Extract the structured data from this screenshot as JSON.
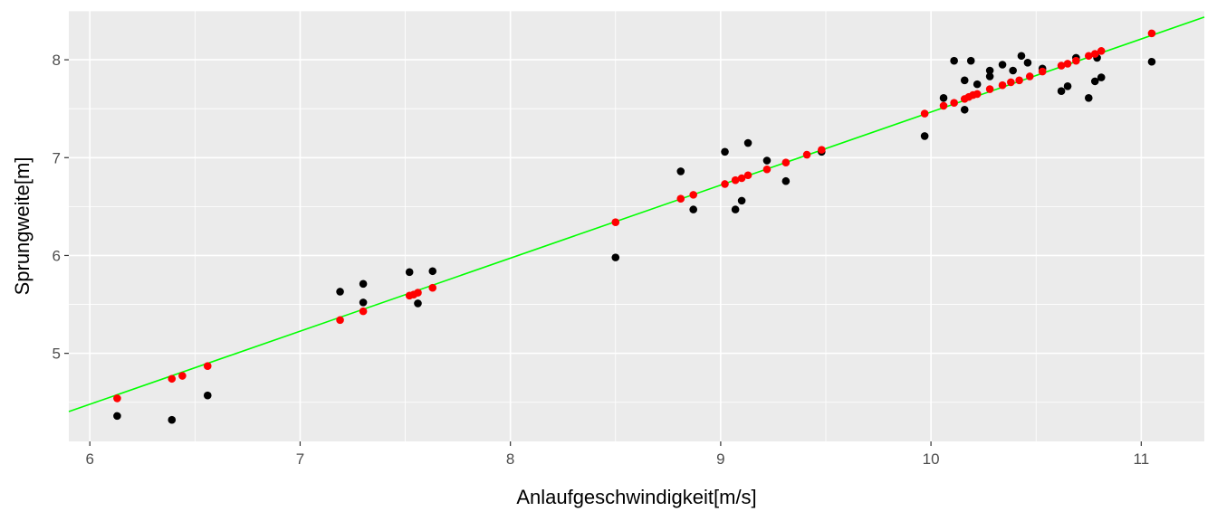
{
  "chart_data": {
    "type": "scatter",
    "xlabel": "Anlaufgeschwindigkeit[m/s]",
    "ylabel": "Sprungweite[m]",
    "xlim": [
      5.9,
      11.3
    ],
    "ylim": [
      4.1,
      8.5
    ],
    "x_ticks": [
      6,
      7,
      8,
      9,
      10,
      11
    ],
    "y_ticks": [
      5,
      6,
      7,
      8
    ],
    "x_tick_labels": [
      "6",
      "7",
      "8",
      "9",
      "10",
      "11"
    ],
    "y_tick_labels": [
      "5",
      "6",
      "7",
      "8"
    ],
    "grid": true,
    "colors": {
      "panel": "#ebebeb",
      "grid_major": "#ffffff",
      "observed": "#000000",
      "fitted": "#ff0000",
      "fit_line": "#00ff00"
    },
    "fit_line": {
      "intercept": 0.0,
      "slope": 0.7466
    },
    "series": [
      {
        "role": "observed",
        "points": [
          {
            "x": 6.13,
            "y": 4.36
          },
          {
            "x": 6.39,
            "y": 4.32
          },
          {
            "x": 6.56,
            "y": 4.57
          },
          {
            "x": 7.19,
            "y": 5.63
          },
          {
            "x": 7.3,
            "y": 5.71
          },
          {
            "x": 7.3,
            "y": 5.52
          },
          {
            "x": 7.52,
            "y": 5.83
          },
          {
            "x": 7.56,
            "y": 5.51
          },
          {
            "x": 7.63,
            "y": 5.84
          },
          {
            "x": 8.5,
            "y": 5.98
          },
          {
            "x": 8.81,
            "y": 6.86
          },
          {
            "x": 8.87,
            "y": 6.47
          },
          {
            "x": 9.02,
            "y": 7.06
          },
          {
            "x": 9.07,
            "y": 6.47
          },
          {
            "x": 9.1,
            "y": 6.56
          },
          {
            "x": 9.13,
            "y": 7.15
          },
          {
            "x": 9.22,
            "y": 6.97
          },
          {
            "x": 9.31,
            "y": 6.76
          },
          {
            "x": 9.48,
            "y": 7.06
          },
          {
            "x": 9.97,
            "y": 7.22
          },
          {
            "x": 10.06,
            "y": 7.61
          },
          {
            "x": 10.11,
            "y": 7.99
          },
          {
            "x": 10.16,
            "y": 7.49
          },
          {
            "x": 10.16,
            "y": 7.79
          },
          {
            "x": 10.19,
            "y": 7.99
          },
          {
            "x": 10.22,
            "y": 7.75
          },
          {
            "x": 10.28,
            "y": 7.89
          },
          {
            "x": 10.28,
            "y": 7.83
          },
          {
            "x": 10.34,
            "y": 7.95
          },
          {
            "x": 10.39,
            "y": 7.89
          },
          {
            "x": 10.43,
            "y": 8.04
          },
          {
            "x": 10.46,
            "y": 7.97
          },
          {
            "x": 10.53,
            "y": 7.91
          },
          {
            "x": 10.62,
            "y": 7.68
          },
          {
            "x": 10.65,
            "y": 7.73
          },
          {
            "x": 10.69,
            "y": 8.02
          },
          {
            "x": 10.75,
            "y": 7.61
          },
          {
            "x": 10.78,
            "y": 7.78
          },
          {
            "x": 10.79,
            "y": 8.02
          },
          {
            "x": 10.81,
            "y": 7.82
          },
          {
            "x": 11.05,
            "y": 7.98
          }
        ]
      },
      {
        "role": "fitted",
        "points": [
          {
            "x": 6.13,
            "y": 4.54
          },
          {
            "x": 6.39,
            "y": 4.74
          },
          {
            "x": 6.44,
            "y": 4.77
          },
          {
            "x": 6.56,
            "y": 4.87
          },
          {
            "x": 7.19,
            "y": 5.34
          },
          {
            "x": 7.3,
            "y": 5.43
          },
          {
            "x": 7.52,
            "y": 5.59
          },
          {
            "x": 7.54,
            "y": 5.6
          },
          {
            "x": 7.56,
            "y": 5.62
          },
          {
            "x": 7.63,
            "y": 5.67
          },
          {
            "x": 8.5,
            "y": 6.34
          },
          {
            "x": 8.81,
            "y": 6.58
          },
          {
            "x": 8.87,
            "y": 6.62
          },
          {
            "x": 9.02,
            "y": 6.73
          },
          {
            "x": 9.07,
            "y": 6.77
          },
          {
            "x": 9.1,
            "y": 6.79
          },
          {
            "x": 9.13,
            "y": 6.82
          },
          {
            "x": 9.22,
            "y": 6.88
          },
          {
            "x": 9.31,
            "y": 6.95
          },
          {
            "x": 9.41,
            "y": 7.03
          },
          {
            "x": 9.48,
            "y": 7.08
          },
          {
            "x": 9.97,
            "y": 7.45
          },
          {
            "x": 10.06,
            "y": 7.53
          },
          {
            "x": 10.11,
            "y": 7.56
          },
          {
            "x": 10.16,
            "y": 7.6
          },
          {
            "x": 10.18,
            "y": 7.62
          },
          {
            "x": 10.2,
            "y": 7.64
          },
          {
            "x": 10.22,
            "y": 7.65
          },
          {
            "x": 10.28,
            "y": 7.7
          },
          {
            "x": 10.34,
            "y": 7.74
          },
          {
            "x": 10.38,
            "y": 7.77
          },
          {
            "x": 10.42,
            "y": 7.79
          },
          {
            "x": 10.47,
            "y": 7.83
          },
          {
            "x": 10.53,
            "y": 7.88
          },
          {
            "x": 10.62,
            "y": 7.94
          },
          {
            "x": 10.65,
            "y": 7.96
          },
          {
            "x": 10.69,
            "y": 7.99
          },
          {
            "x": 10.75,
            "y": 8.04
          },
          {
            "x": 10.78,
            "y": 8.06
          },
          {
            "x": 10.81,
            "y": 8.09
          },
          {
            "x": 11.05,
            "y": 8.27
          }
        ]
      }
    ]
  }
}
